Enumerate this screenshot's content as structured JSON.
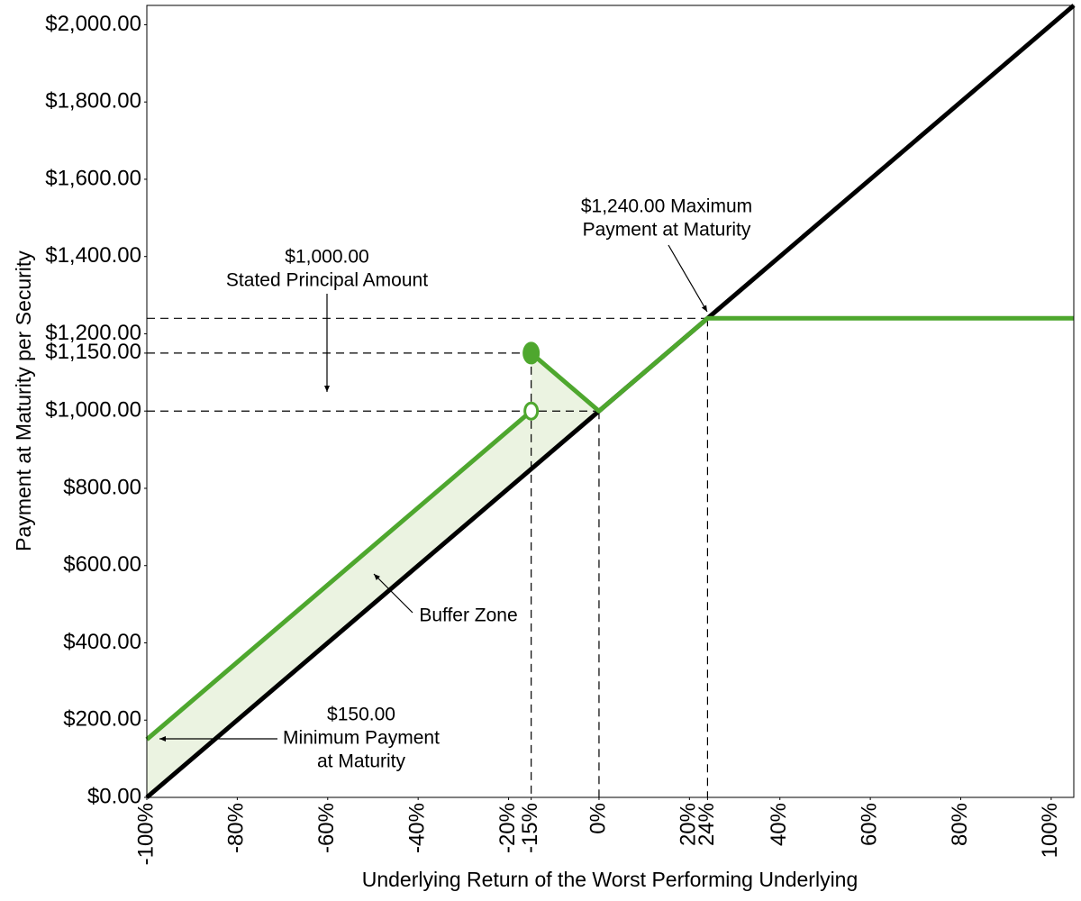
{
  "chart_data": {
    "type": "line",
    "x_label": "Underlying Return of the Worst Performing Underlying",
    "y_label": "Payment at Maturity per Security",
    "xlim": [
      -100,
      105
    ],
    "ylim": [
      0,
      2050
    ],
    "xticks": [
      {
        "value": -100,
        "label": "-100%"
      },
      {
        "value": -80,
        "label": "-80%"
      },
      {
        "value": -60,
        "label": "-60%"
      },
      {
        "value": -40,
        "label": "-40%"
      },
      {
        "value": -20,
        "label": "-20%"
      },
      {
        "value": -15,
        "label": "-15%"
      },
      {
        "value": 0,
        "label": "0%"
      },
      {
        "value": 20,
        "label": "20%"
      },
      {
        "value": 24,
        "label": "24%"
      },
      {
        "value": 40,
        "label": "40%"
      },
      {
        "value": 60,
        "label": "60%"
      },
      {
        "value": 80,
        "label": "80%"
      },
      {
        "value": 100,
        "label": "100%"
      }
    ],
    "yticks": [
      {
        "value": 0,
        "label": "$0.00"
      },
      {
        "value": 200,
        "label": "$200.00"
      },
      {
        "value": 400,
        "label": "$400.00"
      },
      {
        "value": 600,
        "label": "$600.00"
      },
      {
        "value": 800,
        "label": "$800.00"
      },
      {
        "value": 1000,
        "label": "$1,000.00"
      },
      {
        "value": 1150,
        "label": "$1,150.00"
      },
      {
        "value": 1200,
        "label": "$1,200.00"
      },
      {
        "value": 1400,
        "label": "$1,400.00"
      },
      {
        "value": 1600,
        "label": "$1,600.00"
      },
      {
        "value": 1800,
        "label": "$1,800.00"
      },
      {
        "value": 2000,
        "label": "$2,000.00"
      }
    ],
    "grid": false,
    "series": [
      {
        "color": "#000000",
        "x": [
          -100,
          105
        ],
        "values": [
          0,
          2050
        ]
      },
      {
        "color": "#4ea72e",
        "x": [
          -100,
          -15,
          -15,
          -15,
          0,
          24,
          105
        ],
        "values": [
          150,
          1000,
          null,
          1150,
          1000,
          1240,
          1240
        ]
      }
    ],
    "markers": [
      {
        "x": -15,
        "y": 1000,
        "filled": false,
        "color": "#4ea72e"
      },
      {
        "x": -15,
        "y": 1150,
        "filled": true,
        "color": "#4ea72e"
      }
    ],
    "area_color": "#ebf3e1",
    "reference_lines": [
      {
        "x": -15,
        "y": 1150
      },
      {
        "x": 0,
        "y": 1000
      },
      {
        "x": 24,
        "y": 1240
      }
    ],
    "annotations": [
      {
        "lines": [
          "$1,240.00 Maximum",
          "Payment at Maturity"
        ]
      },
      {
        "lines": [
          "$1,000.00",
          "Stated Principal Amount"
        ]
      },
      {
        "lines": [
          "Buffer Zone"
        ]
      },
      {
        "lines": [
          "$150.00",
          "Minimum Payment",
          "at Maturity"
        ]
      }
    ]
  }
}
